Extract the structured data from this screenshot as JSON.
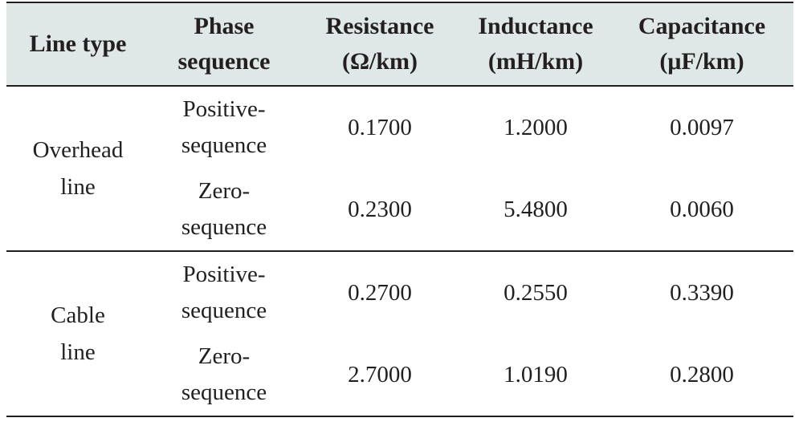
{
  "table": {
    "headers": [
      "Line type",
      "Phase sequence",
      "Resistance (Ω/km)",
      "Inductance (mH/km)",
      "Capacitance (μF/km)"
    ],
    "groups": [
      {
        "line_type": "Overhead line",
        "rows": [
          {
            "phase": "Positive-sequence",
            "resistance": "0.1700",
            "inductance": "1.2000",
            "capacitance": "0.0097"
          },
          {
            "phase": "Zero-sequence",
            "resistance": "0.2300",
            "inductance": "5.4800",
            "capacitance": "0.0060"
          }
        ]
      },
      {
        "line_type": "Cable line",
        "rows": [
          {
            "phase": "Positive-sequence",
            "resistance": "0.2700",
            "inductance": "0.2550",
            "capacitance": "0.3390"
          },
          {
            "phase": "Zero-sequence",
            "resistance": "2.7000",
            "inductance": "1.0190",
            "capacitance": "0.2800"
          }
        ]
      }
    ]
  }
}
